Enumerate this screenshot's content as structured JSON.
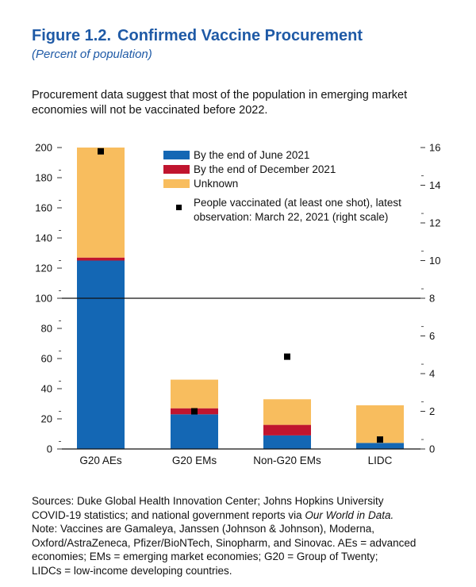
{
  "figure": {
    "number": "Figure 1.2.",
    "title": "Confirmed Vaccine Procurement",
    "subtitle": "(Percent of population)",
    "intro": "Procurement data suggest that most of the population in emerging market economies will not be vaccinated before 2022."
  },
  "notes": {
    "sources_line1": "Sources: Duke Global Health Innovation Center; Johns Hopkins University",
    "sources_line2_pre": "COVID-19 statistics; and national government reports via ",
    "sources_line2_italic": "Our World in Data.",
    "note_line1": "Note: Vaccines are Gamaleya, Janssen (Johnson & Johnson), Moderna,",
    "note_line2": "Oxford/AstraZeneca, Pfizer/BioNTech, Sinopharm, and Sinovac. AEs = advanced",
    "note_line3": "economies; EMs = emerging market economies; G20 = Group of Twenty;",
    "note_line4": "LIDCs = low-income developing countries."
  },
  "colors": {
    "june": "#1467b4",
    "december": "#c0152f",
    "unknown": "#f8bd5e",
    "marker": "#000000",
    "title": "#1f5aa6"
  },
  "chart_data": {
    "type": "bar",
    "stacked": true,
    "categories": [
      "G20 AEs",
      "G20 EMs",
      "Non-G20 EMs",
      "LIDC"
    ],
    "series": [
      {
        "name": "By the end of June 2021",
        "values": [
          125,
          23,
          9,
          4
        ]
      },
      {
        "name": "By the end of December 2021",
        "values": [
          2,
          4,
          7,
          0
        ]
      },
      {
        "name": "Unknown",
        "values": [
          73,
          19,
          17,
          25
        ]
      }
    ],
    "markers": {
      "name": "People vaccinated (at least one shot), latest observation: March 22, 2021 (right scale)",
      "name_line1": "People vaccinated (at least one shot), latest",
      "name_line2": "observation: March 22, 2021 (right scale)",
      "values": [
        15.8,
        2.0,
        4.9,
        0.5
      ],
      "axis": "right"
    },
    "left_axis": {
      "range": [
        0,
        200
      ],
      "ticks": [
        0,
        20,
        40,
        60,
        80,
        100,
        120,
        140,
        160,
        180,
        200
      ]
    },
    "right_axis": {
      "range": [
        0,
        16
      ],
      "ticks": [
        0,
        2,
        4,
        6,
        8,
        10,
        12,
        14,
        16
      ]
    },
    "reference_line": 100,
    "grid": false,
    "legend_position": "top-right"
  }
}
